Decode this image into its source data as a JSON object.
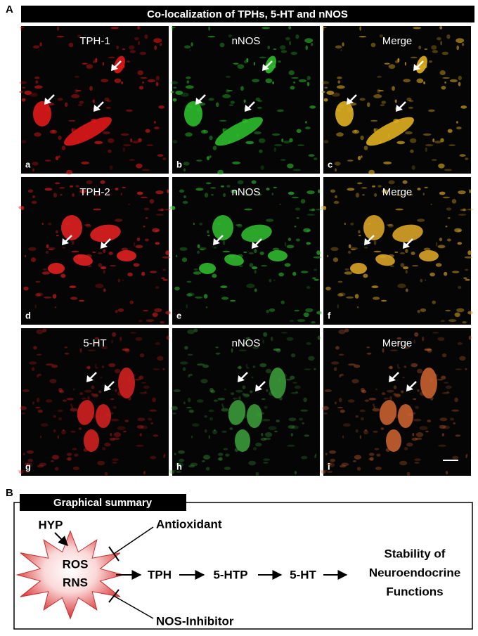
{
  "panel_a": {
    "label": "A",
    "title": "Co-localization of TPHs, 5-HT and nNOS",
    "panels": [
      {
        "name": "TPH-1",
        "letter": "a"
      },
      {
        "name": "nNOS",
        "letter": "b"
      },
      {
        "name": "Merge",
        "letter": "c"
      },
      {
        "name": "TPH-2",
        "letter": "d"
      },
      {
        "name": "nNOS",
        "letter": "e"
      },
      {
        "name": "Merge",
        "letter": "f"
      },
      {
        "name": "5-HT",
        "letter": "g"
      },
      {
        "name": "nNOS",
        "letter": "h"
      },
      {
        "name": "Merge",
        "letter": "i"
      }
    ]
  },
  "panel_b": {
    "label": "B",
    "title": "Graphical summary",
    "source": "HYP",
    "stress": [
      "ROS",
      "RNS"
    ],
    "antioxidant": "Antioxidant",
    "inhibitor": "NOS-Inhibitor",
    "pathway": [
      "TPH",
      "5-HTP",
      "5-HT"
    ],
    "outcome": [
      "Stability of",
      "Neuroendocrine",
      "Functions"
    ]
  }
}
